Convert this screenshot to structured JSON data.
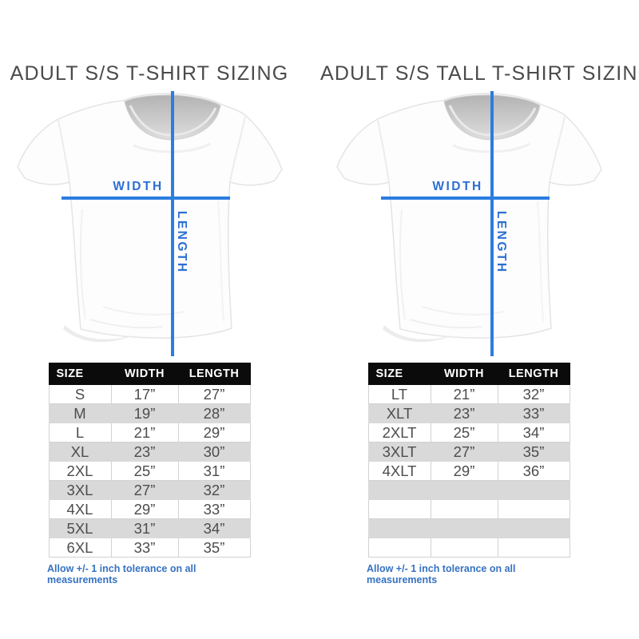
{
  "colors": {
    "line_blue": "#2b7de0",
    "label_blue": "#2c6fd2",
    "note_blue": "#3672c2",
    "header_bg": "#0b0b0b",
    "header_text": "#ffffff",
    "stripe_gray": "#d9d9d9",
    "title_gray": "#4a4a4a"
  },
  "panels": [
    {
      "title": "ADULT S/S T-SHIRT SIZING",
      "diagram": {
        "width_label": "WIDTH",
        "length_label": "LENGTH"
      },
      "table": {
        "headers": [
          "SIZE",
          "WIDTH",
          "LENGTH"
        ],
        "rows": [
          [
            "S",
            "17”",
            "27”"
          ],
          [
            "M",
            "19”",
            "28”"
          ],
          [
            "L",
            "21”",
            "29”"
          ],
          [
            "XL",
            "23”",
            "30”"
          ],
          [
            "2XL",
            "25”",
            "31”"
          ],
          [
            "3XL",
            "27”",
            "32”"
          ],
          [
            "4XL",
            "29”",
            "33”"
          ],
          [
            "5XL",
            "31”",
            "34”"
          ],
          [
            "6XL",
            "33”",
            "35”"
          ]
        ],
        "empty_rows": 0
      },
      "note": "Allow +/- 1 inch tolerance on all measurements"
    },
    {
      "title": "ADULT S/S TALL T-SHIRT SIZING",
      "diagram": {
        "width_label": "WIDTH",
        "length_label": "LENGTH"
      },
      "table": {
        "headers": [
          "SIZE",
          "WIDTH",
          "LENGTH"
        ],
        "rows": [
          [
            "LT",
            "21”",
            "32”"
          ],
          [
            "XLT",
            "23”",
            "33”"
          ],
          [
            "2XLT",
            "25”",
            "34”"
          ],
          [
            "3XLT",
            "27”",
            "35”"
          ],
          [
            "4XLT",
            "29”",
            "36”"
          ]
        ],
        "empty_rows": 4
      },
      "note": "Allow +/- 1 inch tolerance on all measurements"
    }
  ]
}
